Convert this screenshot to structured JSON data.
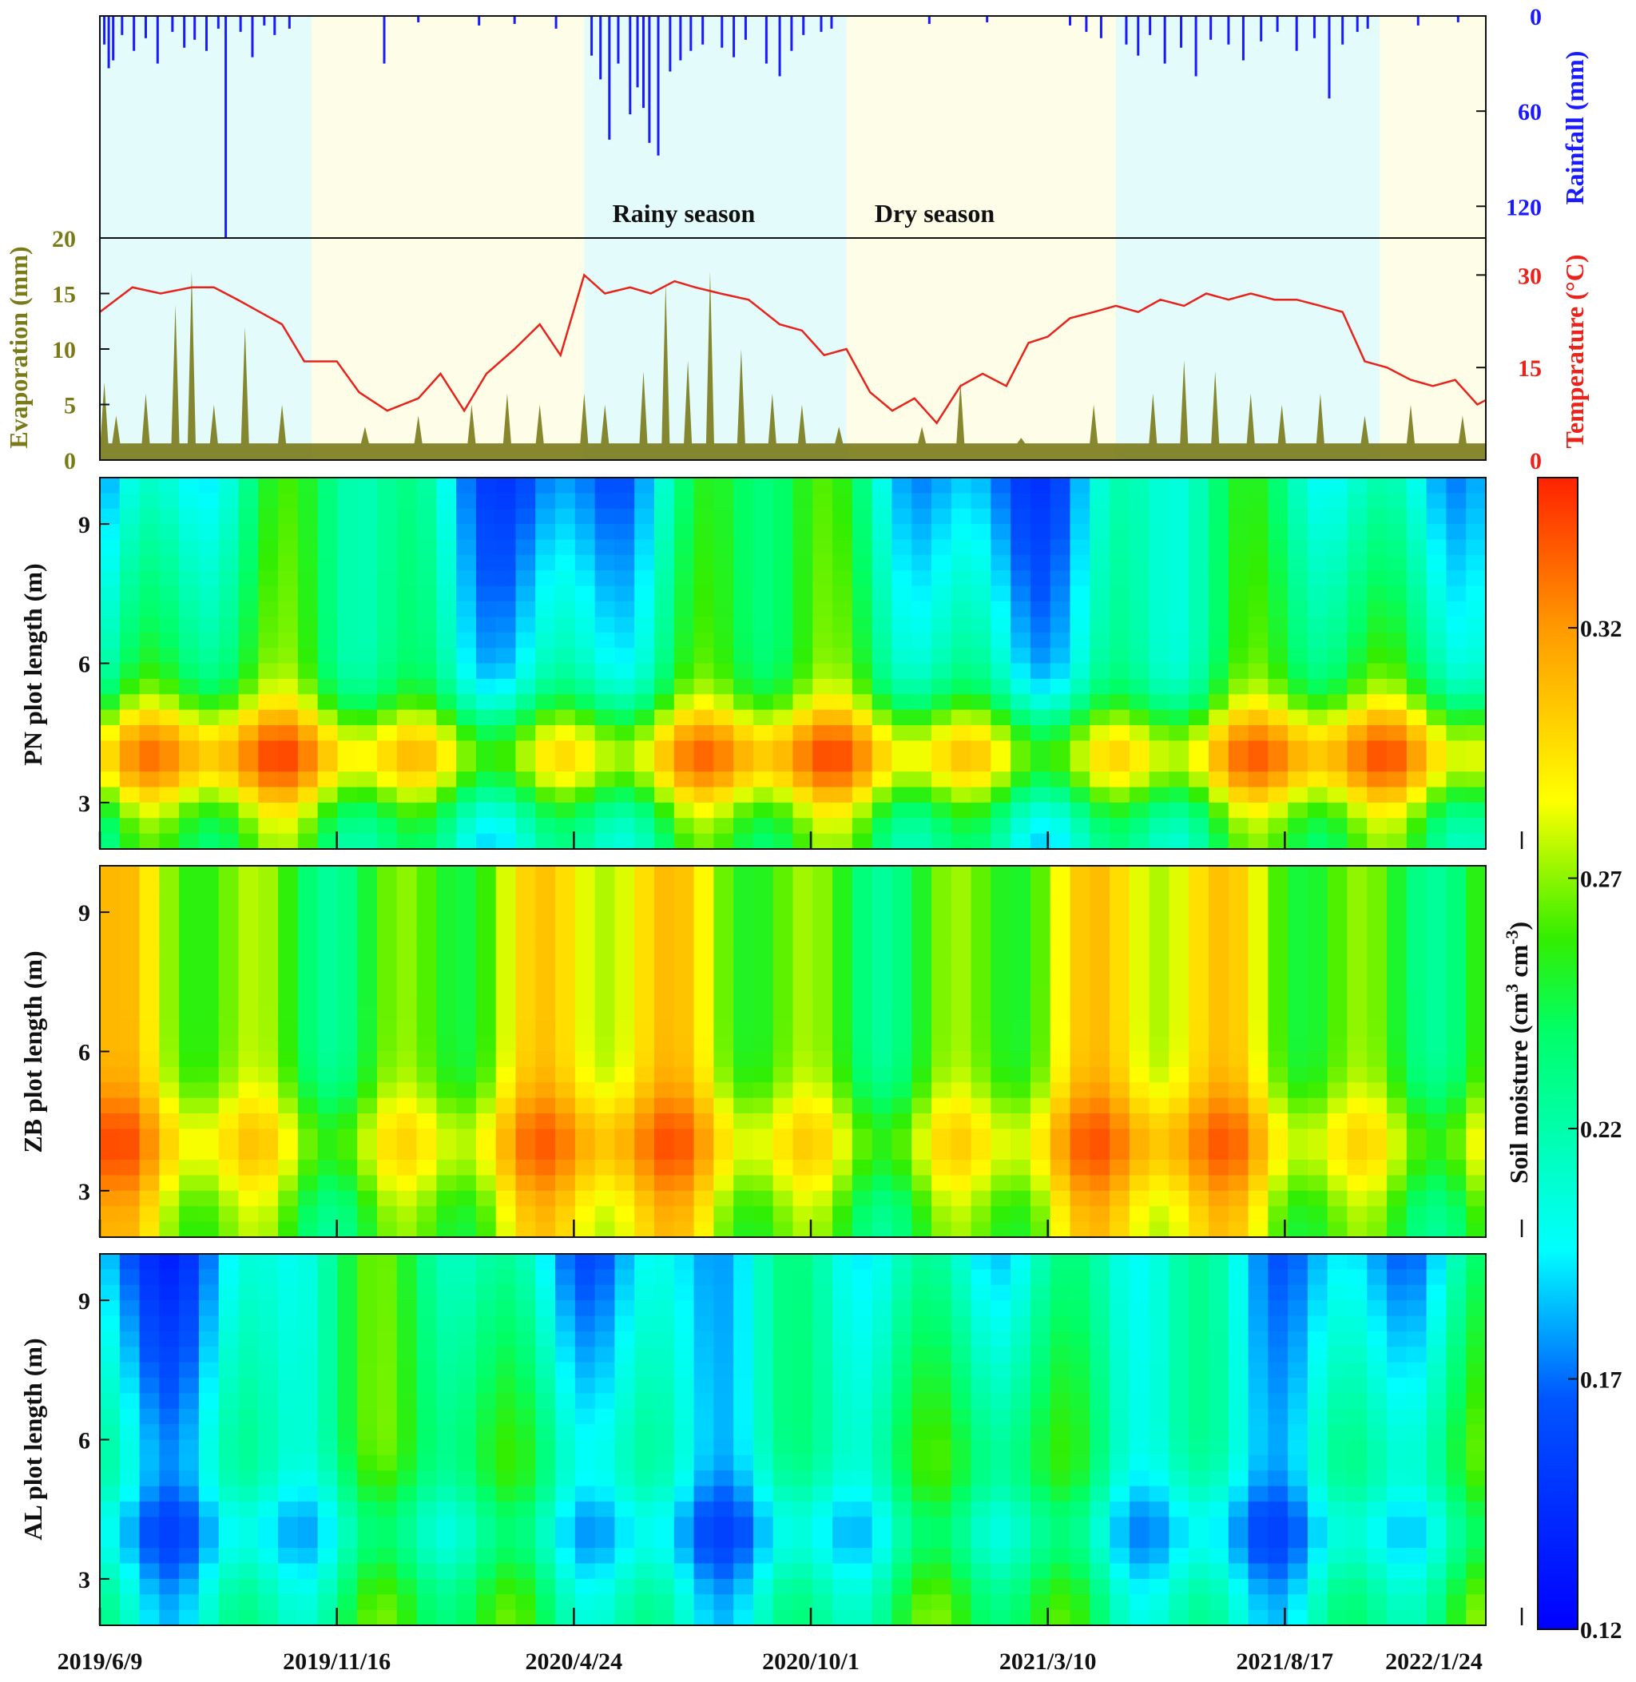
{
  "chart_data": [
    {
      "panel": "climate",
      "type": "line",
      "x_dates": [
        "2019/6/9",
        "2019/11/16",
        "2020/4/24",
        "2020/10/1",
        "2021/3/10",
        "2021/8/17",
        "2022/1/24"
      ],
      "seasons": [
        {
          "label": "Rainy season",
          "start": "2019/6/9",
          "end": "2019/10/30",
          "color": "#e3fbfb"
        },
        {
          "label": "Dry season",
          "start": "2019/10/30",
          "end": "2020/5/1",
          "color": "#fdfde8"
        },
        {
          "label": "Rainy season",
          "start": "2020/5/1",
          "end": "2020/10/25",
          "color": "#e3fbfb"
        },
        {
          "label": "Dry season",
          "start": "2020/10/25",
          "end": "2021/4/25",
          "color": "#fdfde8"
        },
        {
          "label": "Rainy season",
          "start": "2021/4/25",
          "end": "2021/10/20",
          "color": "#e3fbfb"
        },
        {
          "label": "Dry season",
          "start": "2021/10/20",
          "end": "2022/2/25",
          "color": "#fdfde8"
        }
      ],
      "season_labels": {
        "rainy": "Rainy season",
        "dry": "Dry season"
      },
      "rainfall": {
        "label": "Rainfall (mm)",
        "color": "#1a1aff",
        "ylim": [
          0,
          140
        ],
        "ticks": [
          0,
          60,
          120
        ],
        "events": [
          [
            "2019/6/12",
            18
          ],
          [
            "2019/6/15",
            33
          ],
          [
            "2019/6/18",
            28
          ],
          [
            "2019/6/24",
            12
          ],
          [
            "2019/7/2",
            22
          ],
          [
            "2019/7/10",
            14
          ],
          [
            "2019/7/18",
            30
          ],
          [
            "2019/7/28",
            10
          ],
          [
            "2019/8/5",
            20
          ],
          [
            "2019/8/12",
            15
          ],
          [
            "2019/8/20",
            22
          ],
          [
            "2019/8/28",
            8
          ],
          [
            "2019/9/2",
            140
          ],
          [
            "2019/9/12",
            10
          ],
          [
            "2019/9/20",
            26
          ],
          [
            "2019/9/28",
            6
          ],
          [
            "2019/10/5",
            12
          ],
          [
            "2019/10/15",
            8
          ],
          [
            "2019/12/18",
            30
          ],
          [
            "2020/1/10",
            4
          ],
          [
            "2020/2/20",
            6
          ],
          [
            "2020/3/15",
            5
          ],
          [
            "2020/4/12",
            8
          ],
          [
            "2020/5/6",
            25
          ],
          [
            "2020/5/12",
            40
          ],
          [
            "2020/5/18",
            78
          ],
          [
            "2020/5/24",
            30
          ],
          [
            "2020/6/1",
            62
          ],
          [
            "2020/6/6",
            45
          ],
          [
            "2020/6/10",
            58
          ],
          [
            "2020/6/14",
            80
          ],
          [
            "2020/6/20",
            88
          ],
          [
            "2020/6/28",
            35
          ],
          [
            "2020/7/5",
            28
          ],
          [
            "2020/7/12",
            22
          ],
          [
            "2020/7/20",
            18
          ],
          [
            "2020/8/2",
            20
          ],
          [
            "2020/8/10",
            26
          ],
          [
            "2020/8/18",
            15
          ],
          [
            "2020/9/1",
            30
          ],
          [
            "2020/9/10",
            38
          ],
          [
            "2020/9/18",
            22
          ],
          [
            "2020/9/26",
            12
          ],
          [
            "2020/10/8",
            10
          ],
          [
            "2020/10/15",
            8
          ],
          [
            "2020/12/20",
            5
          ],
          [
            "2021/1/28",
            4
          ],
          [
            "2021/3/25",
            6
          ],
          [
            "2021/4/5",
            10
          ],
          [
            "2021/4/15",
            14
          ],
          [
            "2021/5/2",
            18
          ],
          [
            "2021/5/10",
            25
          ],
          [
            "2021/5/18",
            12
          ],
          [
            "2021/5/28",
            30
          ],
          [
            "2021/6/8",
            20
          ],
          [
            "2021/6/18",
            38
          ],
          [
            "2021/6/28",
            15
          ],
          [
            "2021/7/10",
            18
          ],
          [
            "2021/7/20",
            28
          ],
          [
            "2021/8/1",
            16
          ],
          [
            "2021/8/12",
            10
          ],
          [
            "2021/8/25",
            22
          ],
          [
            "2021/9/6",
            14
          ],
          [
            "2021/9/16",
            52
          ],
          [
            "2021/9/25",
            18
          ],
          [
            "2021/10/5",
            10
          ],
          [
            "2021/10/12",
            8
          ],
          [
            "2021/11/15",
            6
          ],
          [
            "2021/12/12",
            4
          ],
          [
            "2022/1/15",
            5
          ],
          [
            "2022/2/5",
            8
          ],
          [
            "2022/2/18",
            6
          ]
        ]
      },
      "evaporation": {
        "label": "Evaporation (mm)",
        "color": "#7a7a19",
        "ylim": [
          0,
          20
        ],
        "ticks": [
          0,
          5,
          10,
          15,
          20
        ],
        "peaks": [
          [
            "2019/6/12",
            7
          ],
          [
            "2019/6/20",
            4
          ],
          [
            "2019/7/10",
            6
          ],
          [
            "2019/7/30",
            14
          ],
          [
            "2019/8/10",
            17
          ],
          [
            "2019/8/25",
            5
          ],
          [
            "2019/9/15",
            12
          ],
          [
            "2019/10/10",
            5
          ],
          [
            "2019/12/5",
            3
          ],
          [
            "2020/1/10",
            4
          ],
          [
            "2020/2/15",
            5
          ],
          [
            "2020/3/10",
            6
          ],
          [
            "2020/4/1",
            5
          ],
          [
            "2020/5/1",
            6
          ],
          [
            "2020/5/15",
            5
          ],
          [
            "2020/6/10",
            8
          ],
          [
            "2020/6/25",
            16
          ],
          [
            "2020/7/10",
            9
          ],
          [
            "2020/7/25",
            17
          ],
          [
            "2020/8/15",
            10
          ],
          [
            "2020/9/5",
            6
          ],
          [
            "2020/9/25",
            5
          ],
          [
            "2020/10/20",
            3
          ],
          [
            "2020/12/15",
            3
          ],
          [
            "2021/1/10",
            7
          ],
          [
            "2021/2/20",
            2
          ],
          [
            "2021/4/10",
            5
          ],
          [
            "2021/5/20",
            6
          ],
          [
            "2021/6/10",
            9
          ],
          [
            "2021/7/1",
            8
          ],
          [
            "2021/7/25",
            6
          ],
          [
            "2021/8/15",
            5
          ],
          [
            "2021/9/10",
            6
          ],
          [
            "2021/10/10",
            4
          ],
          [
            "2021/11/10",
            5
          ],
          [
            "2021/12/15",
            4
          ],
          [
            "2022/1/20",
            3
          ],
          [
            "2022/2/20",
            3
          ]
        ]
      },
      "temperature": {
        "label": "Temperature (°C)",
        "color": "#e8231b",
        "ylim": [
          0,
          36
        ],
        "ticks": [
          0,
          15,
          30
        ],
        "points": [
          [
            "2019/6/9",
            24
          ],
          [
            "2019/7/1",
            28
          ],
          [
            "2019/7/20",
            27
          ],
          [
            "2019/8/10",
            28
          ],
          [
            "2019/8/25",
            28
          ],
          [
            "2019/9/10",
            26
          ],
          [
            "2019/9/25",
            24
          ],
          [
            "2019/10/10",
            22
          ],
          [
            "2019/10/25",
            16
          ],
          [
            "2019/11/16",
            16
          ],
          [
            "2019/12/1",
            11
          ],
          [
            "2019/12/20",
            8
          ],
          [
            "2020/1/10",
            10
          ],
          [
            "2020/1/25",
            14
          ],
          [
            "2020/2/10",
            8
          ],
          [
            "2020/2/25",
            14
          ],
          [
            "2020/3/15",
            18
          ],
          [
            "2020/4/1",
            22
          ],
          [
            "2020/4/15",
            17
          ],
          [
            "2020/5/1",
            30
          ],
          [
            "2020/5/15",
            27
          ],
          [
            "2020/6/1",
            28
          ],
          [
            "2020/6/15",
            27
          ],
          [
            "2020/7/1",
            29
          ],
          [
            "2020/7/15",
            28
          ],
          [
            "2020/8/1",
            27
          ],
          [
            "2020/8/20",
            26
          ],
          [
            "2020/9/10",
            22
          ],
          [
            "2020/9/25",
            21
          ],
          [
            "2020/10/10",
            17
          ],
          [
            "2020/10/25",
            18
          ],
          [
            "2020/11/10",
            11
          ],
          [
            "2020/11/25",
            8
          ],
          [
            "2020/12/10",
            10
          ],
          [
            "2020/12/25",
            6
          ],
          [
            "2021/1/10",
            12
          ],
          [
            "2021/1/25",
            14
          ],
          [
            "2021/2/10",
            12
          ],
          [
            "2021/2/25",
            19
          ],
          [
            "2021/3/10",
            20
          ],
          [
            "2021/3/25",
            23
          ],
          [
            "2021/4/10",
            24
          ],
          [
            "2021/4/25",
            25
          ],
          [
            "2021/5/10",
            24
          ],
          [
            "2021/5/25",
            26
          ],
          [
            "2021/6/10",
            25
          ],
          [
            "2021/6/25",
            27
          ],
          [
            "2021/7/10",
            26
          ],
          [
            "2021/7/25",
            27
          ],
          [
            "2021/8/10",
            26
          ],
          [
            "2021/8/25",
            26
          ],
          [
            "2021/9/10",
            25
          ],
          [
            "2021/9/25",
            24
          ],
          [
            "2021/10/10",
            16
          ],
          [
            "2021/10/25",
            15
          ],
          [
            "2021/11/10",
            13
          ],
          [
            "2021/11/25",
            12
          ],
          [
            "2021/12/10",
            13
          ],
          [
            "2021/12/25",
            9
          ],
          [
            "2022/1/10",
            11
          ],
          [
            "2022/1/25",
            7
          ],
          [
            "2022/2/10",
            10
          ],
          [
            "2022/2/20",
            19
          ]
        ]
      },
      "annotations": [
        "Rainy season",
        "Dry season"
      ]
    },
    {
      "panel": "soil-moisture",
      "type": "heatmap",
      "colorbar": {
        "label": "Soil moisture (cm³ cm⁻³)",
        "label_main": "Soil moisture (cm",
        "sup1": "3",
        "mid": " cm",
        "sup2": "-3",
        "close": ")",
        "range": [
          0.12,
          0.35
        ],
        "ticks": [
          0.12,
          0.17,
          0.22,
          0.27,
          0.32
        ]
      },
      "y_ticks": [
        3,
        6,
        9
      ],
      "y_range": [
        2,
        10
      ],
      "plots": [
        {
          "name": "PN",
          "ylabel": "PN plot length (m)",
          "base": 0.23,
          "band": {
            "center": 4,
            "amplitude": 0.07
          },
          "dry_top": true
        },
        {
          "name": "ZB",
          "ylabel": "ZB plot length (m)",
          "base": 0.27,
          "band": {
            "center": 4,
            "amplitude": 0.03
          },
          "dry_top": false
        },
        {
          "name": "AL",
          "ylabel": "AL plot length (m)",
          "base": 0.23,
          "band": {
            "center": 4,
            "amplitude": -0.03
          },
          "dry_top": true
        }
      ]
    }
  ]
}
